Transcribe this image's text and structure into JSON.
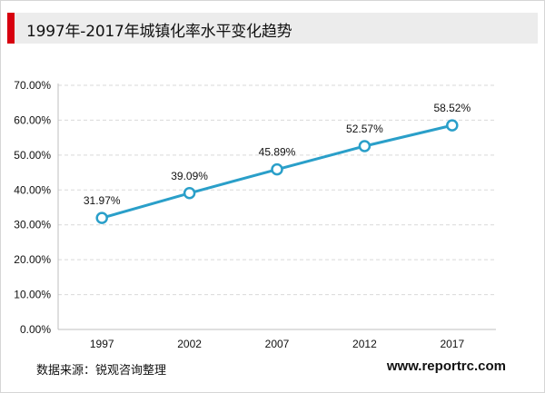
{
  "header": {
    "title": "1997年-2017年城镇化率水平变化趋势"
  },
  "footer": {
    "source": "数据来源：锐观咨询整理",
    "website": "www.reportrc.com"
  },
  "colors": {
    "accent_bar": "#d7000f",
    "line": "#2a9fc9",
    "grid": "#d9d9d9",
    "title_bg": "#ececec"
  },
  "chart_data": {
    "type": "line",
    "categories": [
      "1997",
      "2002",
      "2007",
      "2012",
      "2017"
    ],
    "values": [
      31.97,
      39.09,
      45.89,
      52.57,
      58.52
    ],
    "value_labels": [
      "31.97%",
      "39.09%",
      "45.89%",
      "52.57%",
      "58.52%"
    ],
    "ylim": [
      0,
      70
    ],
    "yticks": [
      0,
      10,
      20,
      30,
      40,
      50,
      60,
      70
    ],
    "ytick_labels": [
      "0.00%",
      "10.00%",
      "20.00%",
      "30.00%",
      "40.00%",
      "50.00%",
      "60.00%",
      "70.00%"
    ],
    "grid": true,
    "marker": "hollow-circle",
    "legend": "none"
  }
}
